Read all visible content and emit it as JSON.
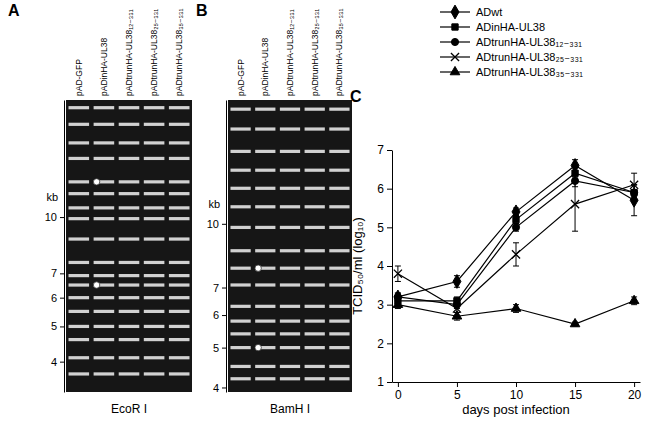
{
  "chart_data": [
    {
      "type": "gel",
      "panel": "A",
      "title": "EcoR I",
      "ylabel": "kb",
      "categories": [
        "pAD-GFP",
        "pADinHA-UL38",
        "pADtrunHA-UL38₁₂₋₃₃₁",
        "pADtrunHA-UL38₂₅₋₃₃₁",
        "pADtrunHA-UL38₃₅₋₃₃₁"
      ],
      "log": "y",
      "ylim": [
        3.3,
        21
      ],
      "yticks": [
        10,
        7,
        6,
        5,
        4
      ],
      "bands": [
        20,
        18,
        16,
        14.5,
        12.5,
        11.6,
        10.6,
        9.9,
        8.7,
        7.5,
        6.9,
        6.5,
        6.0,
        5.5,
        5.0,
        4.6,
        4.1,
        3.7
      ],
      "marked_bands": [
        {
          "lane": 1,
          "value": 12.5
        },
        {
          "lane": 1,
          "value": 6.5
        }
      ]
    },
    {
      "type": "gel",
      "panel": "B",
      "title": "BamH I",
      "ylabel": "kb",
      "categories": [
        "pAD-GFP",
        "pADinHA-UL38",
        "pADtrunHA-UL38₁₂₋₃₃₁",
        "pADtrunHA-UL38₂₅₋₃₃₁",
        "pADtrunHA-UL38₃₅₋₃₃₁"
      ],
      "log": "y",
      "ylim": [
        3.9,
        20
      ],
      "yticks": [
        10,
        7,
        6,
        5,
        4
      ],
      "bands": [
        19,
        17,
        15,
        13.5,
        12.2,
        11,
        9.8,
        8.6,
        7.8,
        7.1,
        6.3,
        5.8,
        5.4,
        5.0,
        4.5,
        4.2
      ],
      "marked_bands": [
        {
          "lane": 1,
          "value": 7.8
        },
        {
          "lane": 1,
          "value": 5.0
        }
      ]
    },
    {
      "type": "line",
      "panel": "C",
      "xlabel": "days post infection",
      "ylabel": "TCID₅₀/ml (log₁₀)",
      "x": [
        0,
        5,
        10,
        15,
        20
      ],
      "xlim": [
        -0.5,
        20.5
      ],
      "xticks": [
        0,
        5,
        10,
        15,
        20
      ],
      "ylim": [
        1,
        7
      ],
      "yticks": [
        1,
        2,
        3,
        4,
        5,
        6,
        7
      ],
      "legend": "top",
      "series": [
        {
          "name": "ADwt",
          "color": "#000000",
          "marker": "diamond",
          "values": [
            3.2,
            3.6,
            5.4,
            6.6,
            5.7
          ],
          "errors": [
            0.1,
            0.15,
            0.1,
            0.15,
            0.4
          ]
        },
        {
          "name": "ADinHA-UL38",
          "color": "#000000",
          "marker": "square",
          "values": [
            3.1,
            3.1,
            5.2,
            6.4,
            5.9
          ],
          "errors": [
            0.1,
            0.1,
            0.1,
            0.15,
            0.2
          ]
        },
        {
          "name": "ADtrunHA-UL38₁₂₋₃₃₁",
          "color": "#000000",
          "marker": "circle",
          "values": [
            3.2,
            3.0,
            5.0,
            6.2,
            5.9
          ],
          "errors": [
            0.1,
            0.1,
            0.1,
            0.15,
            0.2
          ]
        },
        {
          "name": "ADtrunHA-UL38₂₅₋₃₃₁",
          "color": "#000000",
          "marker": "x",
          "values": [
            3.8,
            2.9,
            4.3,
            5.6,
            6.1
          ],
          "errors": [
            0.2,
            0.1,
            0.3,
            0.7,
            0.3
          ]
        },
        {
          "name": "ADtrunHA-UL38₃₅₋₃₃₁",
          "color": "#000000",
          "marker": "triangle",
          "values": [
            3.0,
            2.7,
            2.9,
            2.5,
            3.1
          ],
          "errors": [
            0.1,
            0.1,
            0.1,
            0.05,
            0.1
          ]
        }
      ]
    }
  ]
}
